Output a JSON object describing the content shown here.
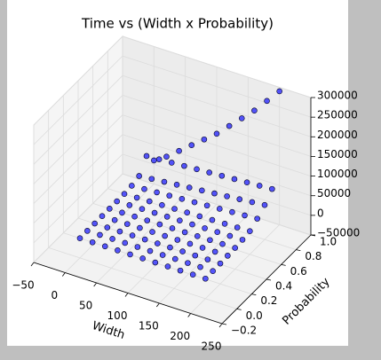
{
  "chart_data": {
    "type": "scatter3d",
    "title": "Time vs (Width x Probability)",
    "xlabel": "Width",
    "ylabel": "Probability",
    "xlim": [
      -50,
      250
    ],
    "ylim": [
      -0.2,
      1.0
    ],
    "zlim": [
      -50000,
      300000
    ],
    "xticks": [
      {
        "value": -50,
        "label": "−50"
      },
      0,
      50,
      100,
      150,
      200,
      250
    ],
    "yticks": [
      {
        "value": -0.2,
        "label": "−0.2"
      },
      {
        "value": 0,
        "label": "0.0"
      },
      {
        "value": 0.2,
        "label": "0.2"
      },
      {
        "value": 0.4,
        "label": "0.4"
      },
      {
        "value": 0.6,
        "label": "0.6"
      },
      {
        "value": 0.8,
        "label": "0.8"
      },
      {
        "value": 1.0,
        "label": "1.0"
      }
    ],
    "zticks": [
      {
        "value": -50000,
        "label": "−50000"
      },
      0,
      50000,
      100000,
      150000,
      200000,
      250000,
      300000
    ],
    "grid": true,
    "color": "#0000ff",
    "x": [
      0,
      20,
      40,
      60,
      80,
      100,
      120,
      140,
      160,
      180,
      200
    ],
    "series": [
      {
        "y": 0.0,
        "values": [
          0,
          100,
          200,
          300,
          400,
          500,
          600,
          700,
          800,
          900,
          1000
        ]
      },
      {
        "y": 0.1,
        "values": [
          0,
          150,
          300,
          450,
          600,
          750,
          900,
          1050,
          1200,
          1350,
          1500
        ]
      },
      {
        "y": 0.2,
        "values": [
          0,
          200,
          400,
          600,
          800,
          1000,
          1200,
          1400,
          1600,
          1800,
          2000
        ]
      },
      {
        "y": 0.3,
        "values": [
          0,
          300,
          600,
          900,
          1200,
          1500,
          1800,
          2100,
          2400,
          2700,
          3000
        ]
      },
      {
        "y": 0.4,
        "values": [
          0,
          400,
          800,
          1200,
          1600,
          2000,
          2400,
          2800,
          3200,
          3600,
          4000
        ]
      },
      {
        "y": 0.5,
        "values": [
          0,
          600,
          1200,
          1800,
          2400,
          3000,
          3600,
          4200,
          4800,
          5400,
          6000
        ]
      },
      {
        "y": 0.6,
        "values": [
          0,
          900,
          1800,
          2700,
          3600,
          4500,
          5400,
          6300,
          7200,
          8100,
          9000
        ]
      },
      {
        "y": 0.7,
        "values": [
          2000,
          4000,
          6000,
          8000,
          10000,
          12000,
          14000,
          16000,
          18000,
          20000,
          22000
        ]
      },
      {
        "y": 0.8,
        "values": [
          8000,
          11000,
          14000,
          17000,
          20000,
          23000,
          26000,
          29000,
          32000,
          35000,
          38000
        ]
      },
      {
        "y": 0.9,
        "values": [
          40000,
          42000,
          44000,
          46000,
          48000,
          50000,
          52000,
          54000,
          56000,
          58000,
          60000
        ]
      },
      {
        "y": 1.0,
        "values": [
          10000,
          30000,
          55000,
          80000,
          105000,
          130000,
          160000,
          190000,
          220000,
          255000,
          290000
        ]
      }
    ]
  }
}
